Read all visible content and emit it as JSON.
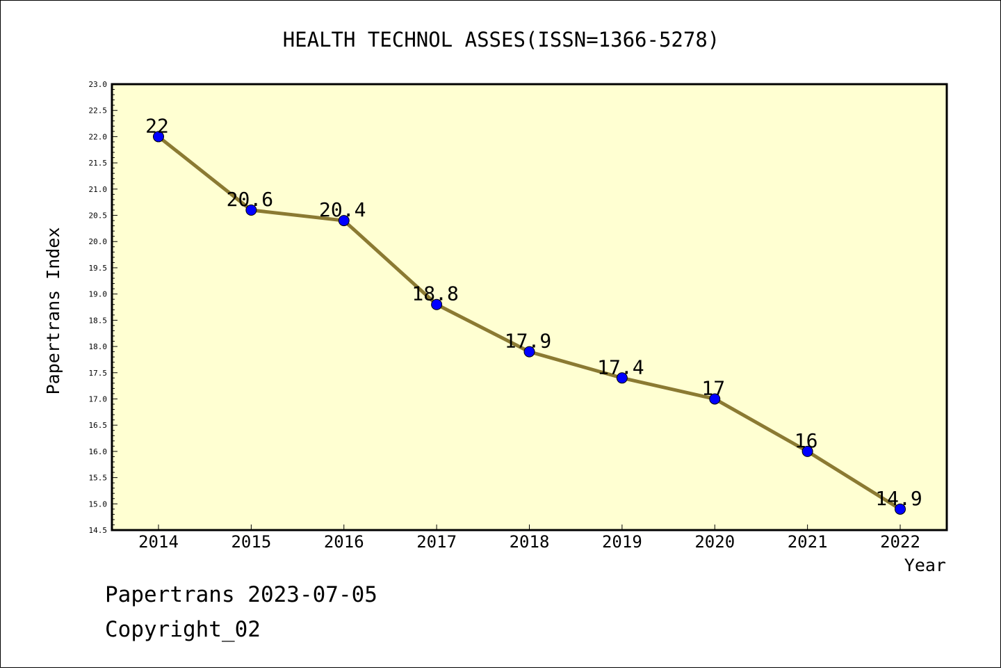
{
  "chart_data": {
    "type": "line",
    "title": "HEALTH TECHNOL ASSES(ISSN=1366-5278)",
    "xlabel": "Year",
    "ylabel": "Papertrans Index",
    "categories": [
      "2014",
      "2015",
      "2016",
      "2017",
      "2018",
      "2019",
      "2020",
      "2021",
      "2022"
    ],
    "values": [
      22,
      20.6,
      20.4,
      18.8,
      17.9,
      17.4,
      17,
      16,
      14.9
    ],
    "data_labels": [
      "22",
      "20.6",
      "20.4",
      "18.8",
      "17.9",
      "17.4",
      "17",
      "16",
      "14.9"
    ],
    "ylim": [
      14.5,
      23.0
    ],
    "yticks": [
      "14.5",
      "15.0",
      "15.5",
      "16.0",
      "16.5",
      "17.0",
      "17.5",
      "18.0",
      "18.5",
      "19.0",
      "19.5",
      "20.0",
      "20.5",
      "21.0",
      "21.5",
      "22.0",
      "22.5",
      "23.0"
    ],
    "grid": false,
    "colors": {
      "plot_background": "#ffffd2",
      "line": "#8b7a32",
      "marker": "#0000ff"
    }
  },
  "footer": {
    "date_text": "Papertrans 2023-07-05",
    "copyright_text": "Copyright_02"
  }
}
